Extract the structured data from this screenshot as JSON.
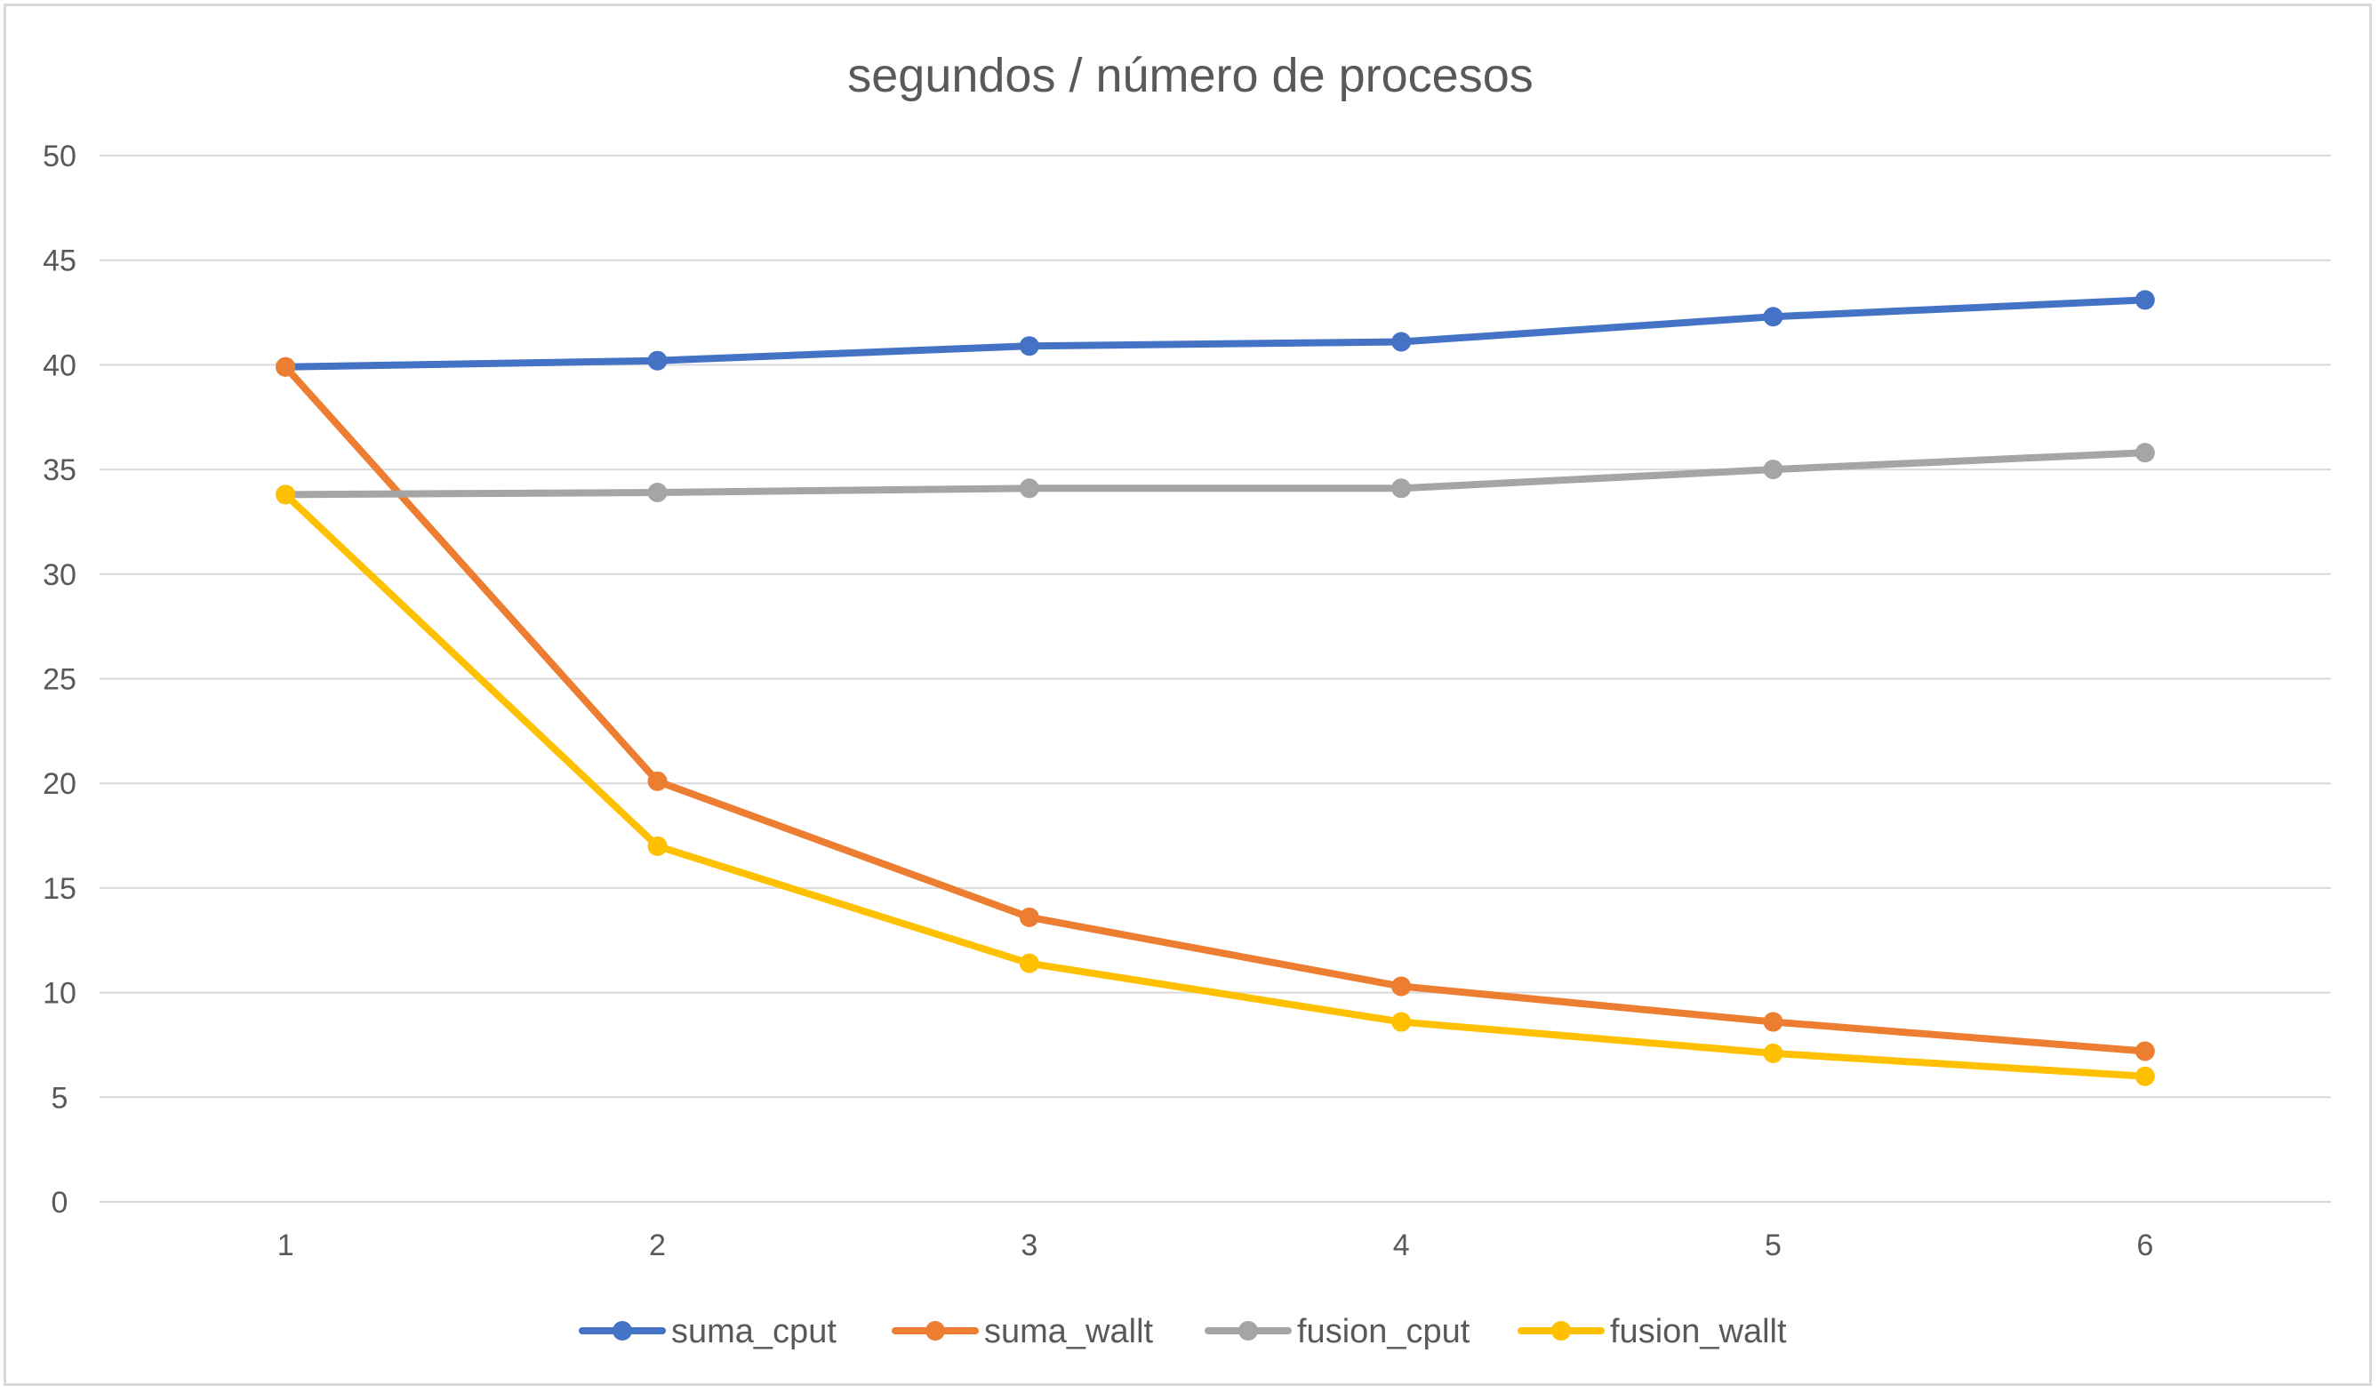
{
  "chart_data": {
    "type": "line",
    "title": "segundos / número de procesos",
    "xlabel": "",
    "ylabel": "",
    "categories": [
      "1",
      "2",
      "3",
      "4",
      "5",
      "6"
    ],
    "ylim": [
      0,
      50
    ],
    "yticks": [
      "0",
      "5",
      "10",
      "15",
      "20",
      "25",
      "30",
      "35",
      "40",
      "45",
      "50"
    ],
    "grid": true,
    "legend_position": "bottom",
    "series": [
      {
        "name": "suma_cput",
        "color": "#4472C4",
        "values": [
          39.9,
          40.2,
          40.9,
          41.1,
          42.3,
          43.1
        ]
      },
      {
        "name": "suma_wallt",
        "color": "#ED7D31",
        "values": [
          39.9,
          20.1,
          13.6,
          10.3,
          8.6,
          7.2
        ]
      },
      {
        "name": "fusion_cput",
        "color": "#A5A5A5",
        "values": [
          33.8,
          33.9,
          34.1,
          34.1,
          35.0,
          35.8
        ]
      },
      {
        "name": "fusion_wallt",
        "color": "#FFC000",
        "values": [
          33.8,
          17.0,
          11.4,
          8.6,
          7.1,
          6.0
        ]
      }
    ]
  }
}
